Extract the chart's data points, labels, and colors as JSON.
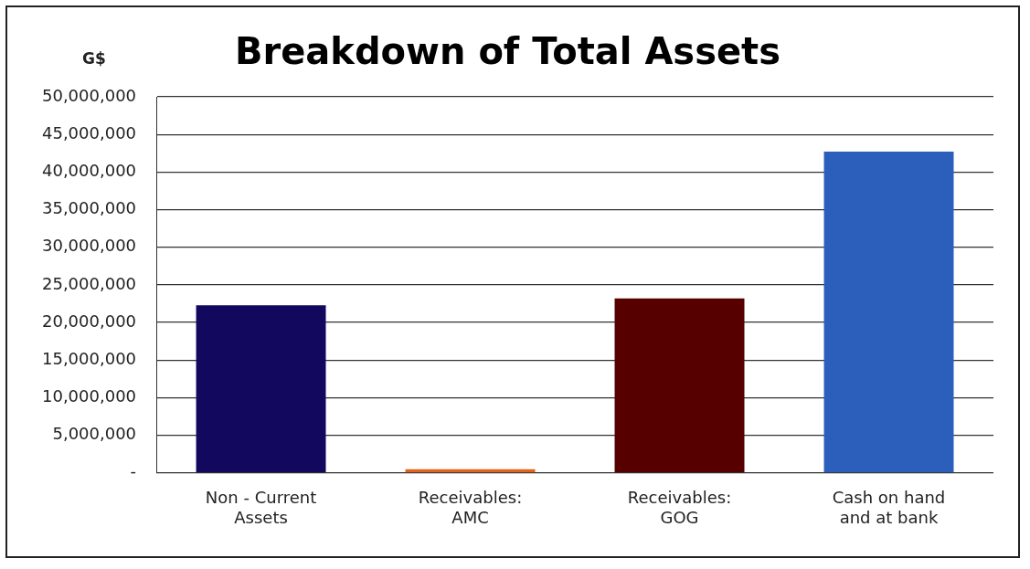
{
  "chart_data": {
    "type": "bar",
    "title": "Breakdown of Total Assets",
    "ylabel": "G$",
    "categories": [
      "Non - Current Assets",
      "Receivables: AMC",
      "Receivables: GOG",
      "Cash on hand and at bank"
    ],
    "values": [
      22300000,
      500000,
      23200000,
      42700000
    ],
    "colors": [
      "#12095e",
      "#e0641a",
      "#560000",
      "#2b5fbb"
    ],
    "ylim": [
      0,
      50000000
    ],
    "yticks": [
      {
        "value": 0,
        "label": "-"
      },
      {
        "value": 5000000,
        "label": "5,000,000"
      },
      {
        "value": 10000000,
        "label": "10,000,000"
      },
      {
        "value": 15000000,
        "label": "15,000,000"
      },
      {
        "value": 20000000,
        "label": "20,000,000"
      },
      {
        "value": 25000000,
        "label": "25,000,000"
      },
      {
        "value": 30000000,
        "label": "30,000,000"
      },
      {
        "value": 35000000,
        "label": "35,000,000"
      },
      {
        "value": 40000000,
        "label": "40,000,000"
      },
      {
        "value": 45000000,
        "label": "45,000,000"
      },
      {
        "value": 50000000,
        "label": "50,000,000"
      }
    ],
    "grid": "y",
    "legend": false
  }
}
